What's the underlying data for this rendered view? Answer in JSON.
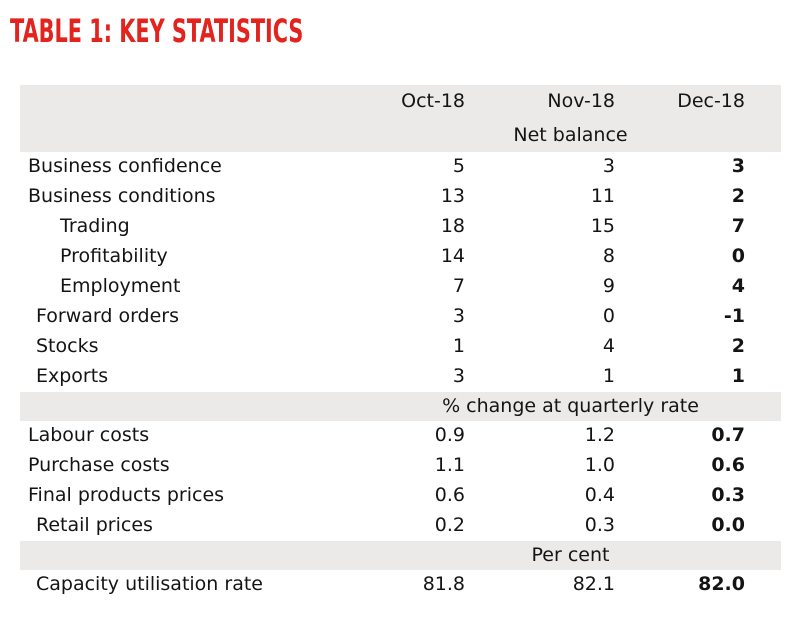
{
  "title": "TABLE 1: KEY STATISTICS",
  "chart_data": {
    "type": "table",
    "title": "TABLE 1: KEY STATISTICS",
    "columns": [
      "Oct-18",
      "Nov-18",
      "Dec-18"
    ],
    "sections": [
      {
        "band_label": "Net balance",
        "rows": [
          {
            "label": "Business confidence",
            "indent": 0,
            "values": [
              "5",
              "3",
              "3"
            ]
          },
          {
            "label": "Business conditions",
            "indent": 0,
            "values": [
              "13",
              "11",
              "2"
            ]
          },
          {
            "label": "Trading",
            "indent": 2,
            "values": [
              "18",
              "15",
              "7"
            ]
          },
          {
            "label": "Profitability",
            "indent": 2,
            "values": [
              "14",
              "8",
              "0"
            ]
          },
          {
            "label": "Employment",
            "indent": 2,
            "values": [
              "7",
              "9",
              "4"
            ]
          },
          {
            "label": "Forward orders",
            "indent": 1,
            "values": [
              "3",
              "0",
              "-1"
            ]
          },
          {
            "label": "Stocks",
            "indent": 1,
            "values": [
              "1",
              "4",
              "2"
            ]
          },
          {
            "label": "Exports",
            "indent": 1,
            "values": [
              "3",
              "1",
              "1"
            ]
          }
        ]
      },
      {
        "band_label": "% change at quarterly rate",
        "rows": [
          {
            "label": "Labour costs",
            "indent": 0,
            "values": [
              "0.9",
              "1.2",
              "0.7"
            ]
          },
          {
            "label": "Purchase costs",
            "indent": 0,
            "values": [
              "1.1",
              "1.0",
              "0.6"
            ]
          },
          {
            "label": "Final products prices",
            "indent": 0,
            "values": [
              "0.6",
              "0.4",
              "0.3"
            ]
          },
          {
            "label": "Retail prices",
            "indent": 1,
            "values": [
              "0.2",
              "0.3",
              "0.0"
            ]
          }
        ]
      },
      {
        "band_label": "Per cent",
        "rows": [
          {
            "label": "Capacity utilisation rate",
            "indent": 1,
            "values": [
              "81.8",
              "82.1",
              "82.0"
            ]
          }
        ]
      }
    ]
  },
  "colors": {
    "title_red": "#e2231e",
    "band_gray": "#ece9e9",
    "text": "#141414"
  }
}
